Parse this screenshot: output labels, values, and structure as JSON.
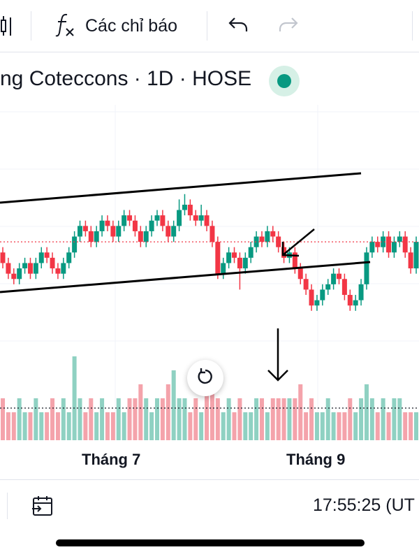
{
  "toolbar": {
    "indicators_label": "Các chỉ báo",
    "icons": [
      "candlestick-icon",
      "function-icon",
      "undo-icon",
      "redo-icon"
    ]
  },
  "symbol": {
    "title": "ng Coteccons · 1D · HOSE",
    "status_color": "#089981"
  },
  "time_axis": {
    "labels": [
      "Tháng 7",
      "Tháng 9"
    ]
  },
  "bottom": {
    "clock": "17:55:25 (UT"
  },
  "colors": {
    "up": "#089981",
    "down": "#f23645",
    "volume_up": "#8fd1c2",
    "volume_down": "#f4a3ab",
    "price_line": "#f23645"
  },
  "chart_data": {
    "type": "candlestick",
    "series": [
      {
        "name": "price",
        "values": [
          [
            50,
            48,
            51,
            47
          ],
          [
            48,
            46,
            49,
            45
          ],
          [
            46,
            45,
            47,
            44
          ],
          [
            45,
            47,
            48,
            44
          ],
          [
            47,
            48,
            49,
            46
          ],
          [
            48,
            46,
            49,
            45
          ],
          [
            46,
            48,
            49,
            45
          ],
          [
            48,
            50,
            51,
            47
          ],
          [
            50,
            49,
            51,
            48
          ],
          [
            49,
            47,
            50,
            46
          ],
          [
            47,
            46,
            48,
            45
          ],
          [
            46,
            48,
            49,
            45
          ],
          [
            48,
            50,
            51,
            47
          ],
          [
            50,
            53,
            54,
            49
          ],
          [
            53,
            55,
            56,
            52
          ],
          [
            55,
            54,
            56,
            53
          ],
          [
            54,
            52,
            55,
            51
          ],
          [
            52,
            54,
            55,
            51
          ],
          [
            54,
            56,
            57,
            53
          ],
          [
            56,
            55,
            57,
            54
          ],
          [
            55,
            53,
            56,
            52
          ],
          [
            53,
            55,
            56,
            52
          ],
          [
            55,
            57,
            58,
            54
          ],
          [
            57,
            56,
            58,
            55
          ],
          [
            56,
            54,
            57,
            53
          ],
          [
            54,
            52,
            55,
            51
          ],
          [
            52,
            54,
            55,
            51
          ],
          [
            54,
            56,
            57,
            53
          ],
          [
            56,
            57,
            58,
            55
          ],
          [
            57,
            55,
            58,
            54
          ],
          [
            55,
            53,
            56,
            52
          ],
          [
            53,
            55,
            56,
            52
          ],
          [
            55,
            58,
            60,
            54
          ],
          [
            58,
            59,
            61,
            57
          ],
          [
            59,
            57,
            60,
            56
          ],
          [
            57,
            56,
            58,
            55
          ],
          [
            56,
            57,
            59,
            55
          ],
          [
            57,
            55,
            58,
            54
          ],
          [
            55,
            52,
            56,
            51
          ],
          [
            52,
            46,
            53,
            45
          ],
          [
            46,
            48,
            49,
            45
          ],
          [
            48,
            50,
            51,
            47
          ],
          [
            50,
            49,
            51,
            48
          ],
          [
            49,
            47,
            50,
            43
          ],
          [
            47,
            49,
            50,
            46
          ],
          [
            49,
            51,
            52,
            48
          ],
          [
            51,
            53,
            54,
            50
          ],
          [
            53,
            52,
            54,
            51
          ],
          [
            52,
            54,
            55,
            51
          ],
          [
            54,
            53,
            55,
            52
          ],
          [
            53,
            51,
            54,
            50
          ],
          [
            51,
            49,
            52,
            48
          ],
          [
            49,
            50,
            51,
            48
          ],
          [
            50,
            47,
            51,
            46
          ],
          [
            47,
            45,
            48,
            44
          ],
          [
            45,
            43,
            46,
            42
          ],
          [
            43,
            40,
            44,
            39
          ],
          [
            40,
            41,
            42,
            39
          ],
          [
            41,
            43,
            44,
            40
          ],
          [
            43,
            44,
            45,
            42
          ],
          [
            44,
            46,
            47,
            43
          ],
          [
            46,
            45,
            47,
            44
          ],
          [
            45,
            42,
            46,
            41
          ],
          [
            42,
            40,
            43,
            39
          ],
          [
            40,
            41,
            42,
            39
          ],
          [
            41,
            44,
            45,
            40
          ],
          [
            44,
            50,
            51,
            43
          ],
          [
            50,
            52,
            53,
            49
          ],
          [
            52,
            51,
            53,
            50
          ],
          [
            51,
            53,
            54,
            50
          ],
          [
            53,
            50,
            54,
            49
          ],
          [
            50,
            52,
            53,
            49
          ],
          [
            52,
            53,
            54,
            51
          ],
          [
            53,
            50,
            54,
            49
          ],
          [
            50,
            47,
            51,
            46
          ],
          [
            47,
            52,
            53,
            46
          ]
        ]
      },
      {
        "name": "volume",
        "values": [
          3,
          2,
          2,
          3,
          2,
          2,
          3,
          2,
          2,
          3,
          2,
          3,
          2,
          6,
          3,
          2,
          3,
          2,
          3,
          2,
          2,
          3,
          2,
          3,
          3,
          4,
          3,
          2,
          3,
          3,
          4,
          5,
          3,
          3,
          2,
          3,
          2,
          4,
          4,
          3,
          2,
          3,
          2,
          3,
          2,
          2,
          3,
          3,
          2,
          3,
          3,
          3,
          3,
          3,
          4,
          2,
          3,
          2,
          2,
          3,
          2,
          2,
          2,
          3,
          2,
          3,
          4,
          3,
          2,
          3,
          2,
          3,
          3,
          2,
          2,
          2
        ]
      }
    ],
    "xlabels": [
      "Tháng 7",
      "Tháng 9"
    ]
  }
}
